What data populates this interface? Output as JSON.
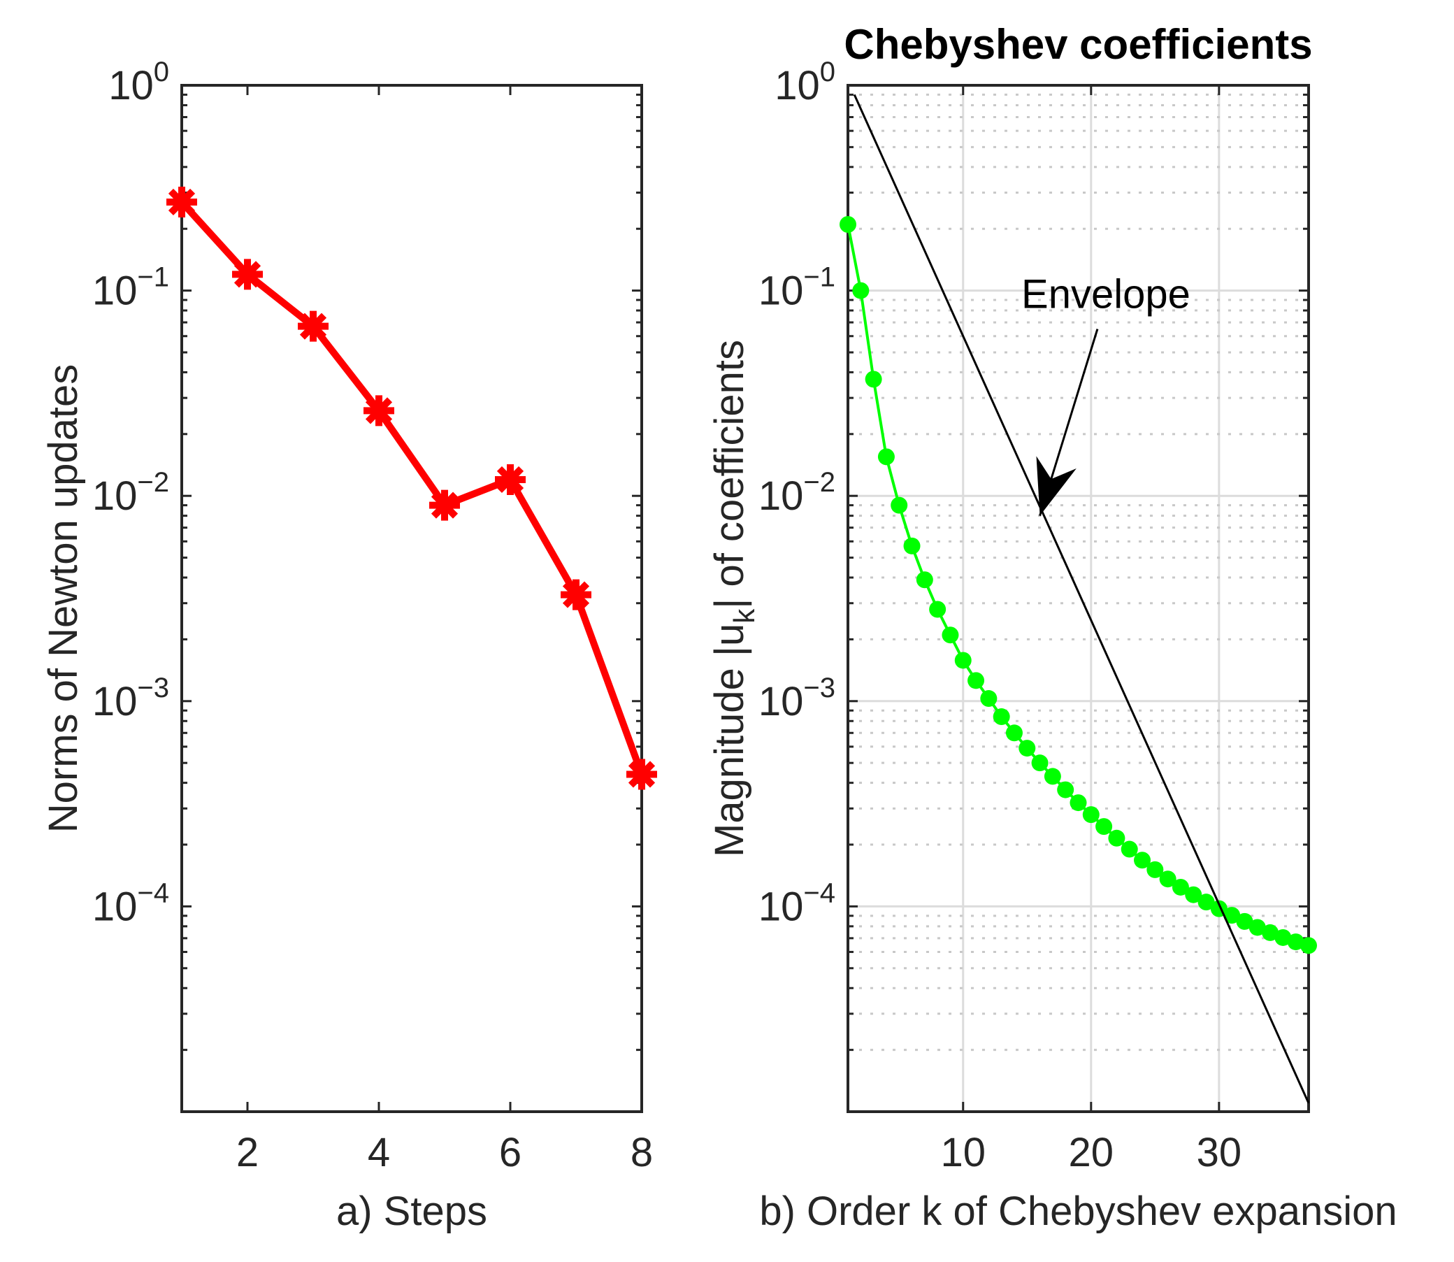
{
  "chart_data": [
    {
      "type": "line",
      "panel": "a",
      "title": "",
      "xlabel": "a) Steps",
      "ylabel": "Norms of Newton updates",
      "yscale": "log",
      "xlim": [
        1,
        8
      ],
      "ylim": [
        1e-05,
        1
      ],
      "xticks": [
        2,
        4,
        6,
        8
      ],
      "xtick_labels": [
        "2",
        "4",
        "6",
        "8"
      ],
      "ytick_exponents": [
        0,
        -1,
        -2,
        -3,
        -4
      ],
      "ytick_base": "10",
      "grid": false,
      "series": [
        {
          "name": "Newton update norms",
          "color": "#ff0000",
          "marker": "asterisk",
          "x": [
            1,
            2,
            3,
            4,
            5,
            6,
            7,
            8
          ],
          "y": [
            0.27,
            0.12,
            0.067,
            0.026,
            0.009,
            0.012,
            0.0033,
            0.00044
          ]
        }
      ]
    },
    {
      "type": "line",
      "panel": "b",
      "title": "Chebyshev coefficients",
      "xlabel": "b) Order k of Chebyshev expansion",
      "ylabel_prefix": "Magnitude |u",
      "ylabel_sub": "k",
      "ylabel_suffix": "| of coefficients",
      "yscale": "log",
      "xlim": [
        1,
        37
      ],
      "ylim": [
        1e-05,
        1
      ],
      "xticks": [
        10,
        20,
        30
      ],
      "xtick_labels": [
        "10",
        "20",
        "30"
      ],
      "ytick_exponents": [
        0,
        -1,
        -2,
        -3,
        -4
      ],
      "ytick_base": "10",
      "grid": true,
      "series": [
        {
          "name": "coefficients",
          "color": "#00ff00",
          "marker": "circle",
          "x": [
            1,
            2,
            3,
            4,
            5,
            6,
            7,
            8,
            9,
            10,
            11,
            12,
            13,
            14,
            15,
            16,
            17,
            18,
            19,
            20,
            21,
            22,
            23,
            24,
            25,
            26,
            27,
            28,
            29,
            30,
            31,
            32,
            33,
            34,
            35,
            36,
            37
          ],
          "y": [
            0.21,
            0.1,
            0.037,
            0.0155,
            0.009,
            0.0057,
            0.0039,
            0.0028,
            0.0021,
            0.00158,
            0.00126,
            0.00103,
            0.00084,
            0.0007,
            0.00059,
            0.0005,
            0.00043,
            0.00037,
            0.00032,
            0.00028,
            0.000245,
            0.000215,
            0.00019,
            0.000168,
            0.000151,
            0.000136,
            0.000124,
            0.000114,
            0.000105,
            9.75e-05,
            9.05e-05,
            8.45e-05,
            7.9e-05,
            7.45e-05,
            7.05e-05,
            6.72e-05,
            6.45e-05
          ]
        },
        {
          "name": "Envelope",
          "color": "#000000",
          "marker": "none",
          "x": [
            1.5,
            37
          ],
          "y": [
            0.9,
            1.1e-05
          ]
        }
      ],
      "annotations": [
        {
          "text": "Envelope",
          "arrow_from": [
            20.5,
            0.065
          ],
          "arrow_to": [
            16,
            0.008
          ]
        }
      ]
    }
  ]
}
